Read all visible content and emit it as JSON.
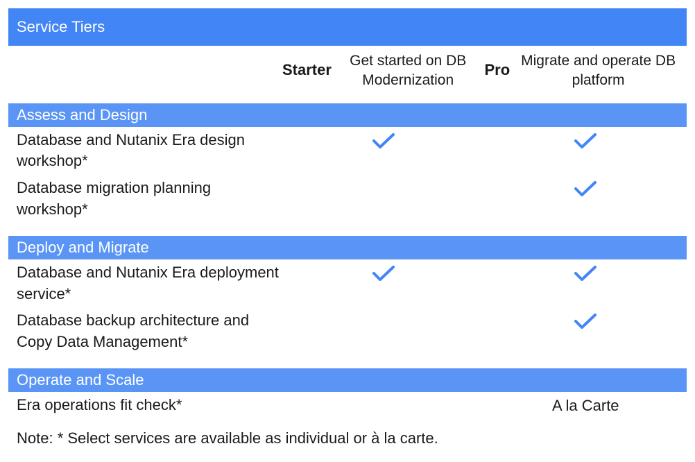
{
  "colors": {
    "title_bar_bg": "#4285f4",
    "section_bar_bg": "#5a95f5",
    "bar_text": "#ffffff",
    "body_text": "#1a1a1a",
    "check_color": "#4285f4",
    "background": "#ffffff"
  },
  "title": "Service Tiers",
  "tiers": [
    {
      "name": "Starter",
      "description": "Get started on DB Modernization"
    },
    {
      "name": "Pro",
      "description": "Migrate and operate DB platform"
    }
  ],
  "sections": [
    {
      "name": "Assess and Design",
      "rows": [
        {
          "label": "Database and Nutanix Era design workshop*",
          "cells": [
            "check",
            "check"
          ]
        },
        {
          "label": "Database migration planning workshop*",
          "cells": [
            "",
            "check"
          ]
        }
      ]
    },
    {
      "name": "Deploy and Migrate",
      "rows": [
        {
          "label": "Database and Nutanix Era deployment service*",
          "cells": [
            "check",
            "check"
          ]
        },
        {
          "label": "Database backup architecture and Copy Data Management*",
          "cells": [
            "",
            "check"
          ]
        }
      ]
    },
    {
      "name": "Operate and Scale",
      "rows": [
        {
          "label": "Era operations fit check*",
          "cells": [
            "",
            "A la Carte"
          ]
        }
      ]
    }
  ],
  "footnote": "Note: * Select services are available as individual or à la carte."
}
